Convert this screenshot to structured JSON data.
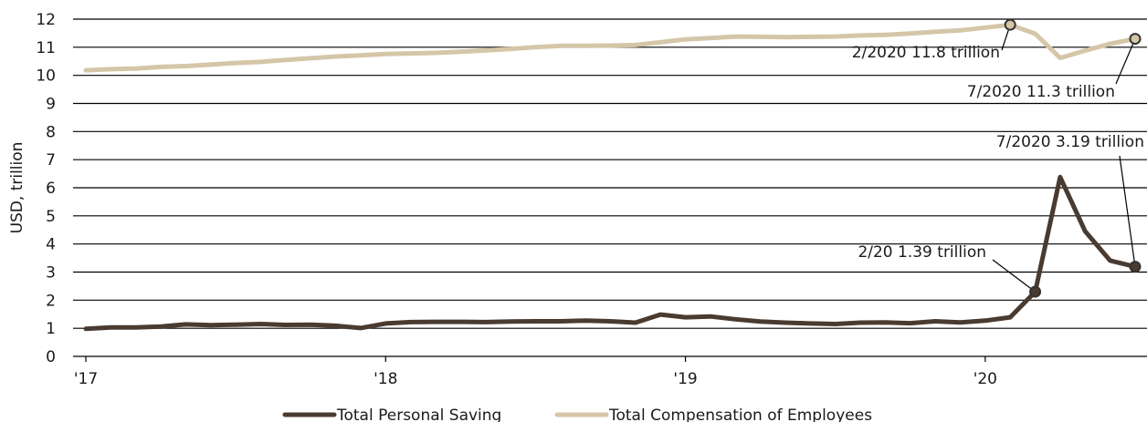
{
  "chart_data": {
    "type": "line",
    "ylabel": "USD, trillion",
    "ylim": [
      0,
      12
    ],
    "yticks": [
      "0",
      "1",
      "2",
      "3",
      "4",
      "5",
      "6",
      "7",
      "8",
      "9",
      "10",
      "11",
      "12"
    ],
    "xticks": [
      {
        "label": "'17",
        "x": 0
      },
      {
        "label": "'18",
        "x": 12
      },
      {
        "label": "'19",
        "x": 24
      },
      {
        "label": "'20",
        "x": 36
      }
    ],
    "xlim": [
      0,
      42.8
    ],
    "grid": true,
    "legend_position": "bottom",
    "series": [
      {
        "name": "Total Personal Saving",
        "color": "#4a3b31",
        "x": [
          0,
          1,
          2,
          3,
          4,
          5,
          6,
          7,
          8,
          9,
          10,
          11,
          12,
          13,
          14,
          15,
          16,
          17,
          18,
          19,
          20,
          21,
          22,
          23,
          24,
          25,
          26,
          27,
          28,
          29,
          30,
          31,
          32,
          33,
          34,
          35,
          36,
          37,
          38,
          39,
          40,
          41,
          42
        ],
        "values": [
          0.98,
          1.03,
          1.03,
          1.06,
          1.14,
          1.11,
          1.13,
          1.15,
          1.12,
          1.13,
          1.09,
          1.01,
          1.17,
          1.22,
          1.23,
          1.23,
          1.22,
          1.24,
          1.25,
          1.25,
          1.27,
          1.25,
          1.2,
          1.49,
          1.39,
          1.42,
          1.32,
          1.24,
          1.2,
          1.17,
          1.15,
          1.2,
          1.21,
          1.18,
          1.25,
          1.21,
          1.27,
          1.39,
          2.3,
          6.38,
          4.45,
          3.41,
          3.19
        ]
      },
      {
        "name": "Total Compensation of Employees",
        "color": "#d5c6a8",
        "x": [
          0,
          1,
          2,
          3,
          4,
          5,
          6,
          7,
          8,
          9,
          10,
          11,
          12,
          13,
          14,
          15,
          16,
          17,
          18,
          19,
          20,
          21,
          22,
          23,
          24,
          25,
          26,
          27,
          28,
          29,
          30,
          31,
          32,
          33,
          34,
          35,
          36,
          37,
          38,
          39,
          40,
          41,
          42
        ],
        "values": [
          10.18,
          10.22,
          10.24,
          10.3,
          10.33,
          10.38,
          10.44,
          10.48,
          10.55,
          10.61,
          10.67,
          10.71,
          10.76,
          10.78,
          10.8,
          10.84,
          10.89,
          10.94,
          11.0,
          11.05,
          11.05,
          11.06,
          11.08,
          11.18,
          11.28,
          11.33,
          11.38,
          11.37,
          11.36,
          11.37,
          11.38,
          11.42,
          11.44,
          11.49,
          11.55,
          11.6,
          11.7,
          11.8,
          11.48,
          10.62,
          10.88,
          11.12,
          11.3
        ]
      }
    ],
    "annotations": [
      {
        "text": "2/2020 11.8 trillion",
        "series": 1,
        "index": 37
      },
      {
        "text": "7/2020 11.3 trillion",
        "series": 1,
        "index": 42
      },
      {
        "text": "7/2020 3.19 trillion",
        "series": 0,
        "index": 42
      },
      {
        "text": "2/20 1.39 trillion",
        "series": 0,
        "index": 38
      }
    ]
  }
}
